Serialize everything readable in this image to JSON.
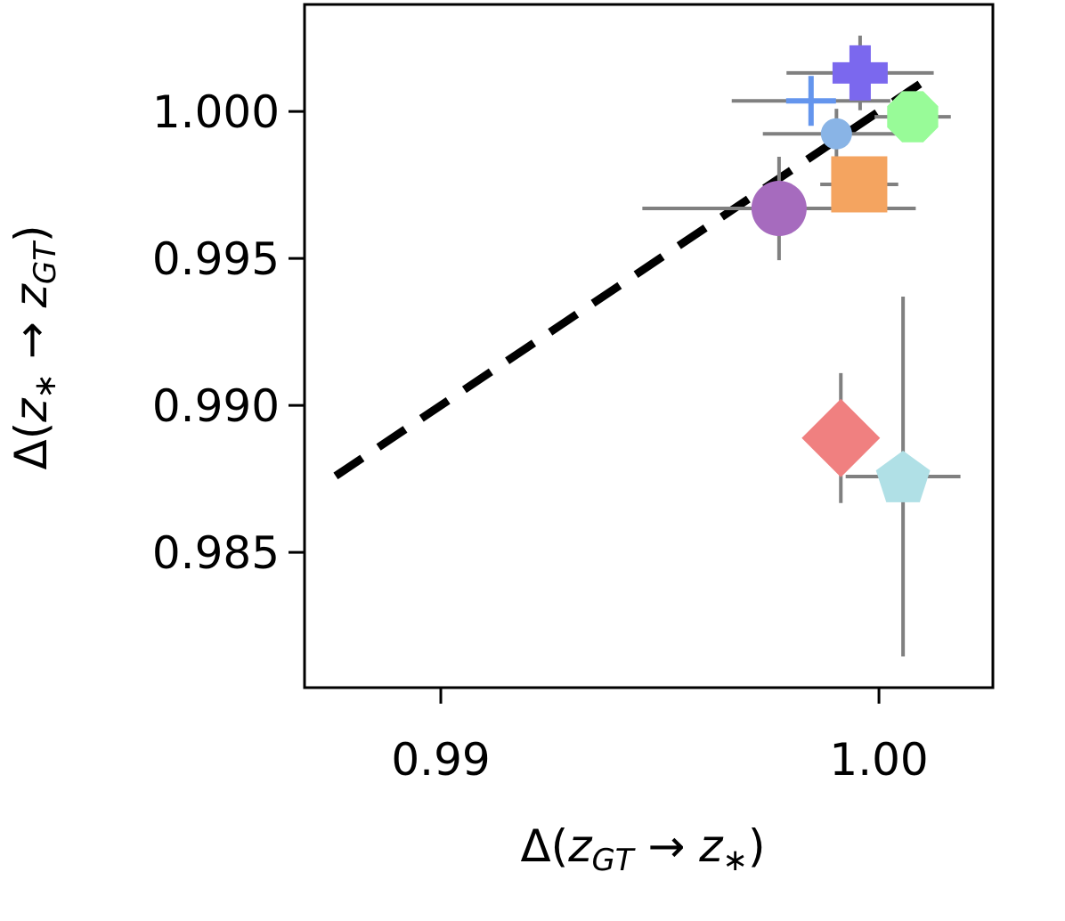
{
  "chart_data": {
    "type": "scatter",
    "title": "",
    "xlabel": {
      "prefix": "Δ(",
      "var1": "z",
      "sub1": "GT",
      "arrow": " → ",
      "var2": "z",
      "sub2": "∗",
      "suffix": ")"
    },
    "ylabel": {
      "prefix": "Δ(",
      "var1": "z",
      "sub1": "∗",
      "arrow": " → ",
      "var2": "z",
      "sub2": "GT",
      "suffix": ")"
    },
    "xlim": [
      0.98689,
      1.0026
    ],
    "ylim": [
      0.9804,
      1.00364
    ],
    "xticks": [
      {
        "value": 0.99,
        "label": "0.99"
      },
      {
        "value": 1.0,
        "label": "1.00"
      }
    ],
    "yticks": [
      {
        "value": 0.985,
        "label": "0.985"
      },
      {
        "value": 0.99,
        "label": "0.990"
      },
      {
        "value": 0.995,
        "label": "0.995"
      },
      {
        "value": 1.0,
        "label": "1.000"
      }
    ],
    "grid": false,
    "reference_line": {
      "style": "dashed",
      "color": "#000000",
      "x": [
        0.9876,
        1.0012
      ],
      "y": [
        0.9876,
        1.0012
      ]
    },
    "errorbar_color": "#808080",
    "points": [
      {
        "marker": "plus-filled",
        "color": "#7B68EE",
        "x": 0.99957,
        "y": 1.00131,
        "xerr": 0.00168,
        "yerr": 0.00127
      },
      {
        "marker": "plus",
        "color": "#6495ED",
        "x": 0.99845,
        "y": 1.00036,
        "xerr": 0.00181,
        "yerr": 0.0002
      },
      {
        "marker": "octagon",
        "color": "#98FB98",
        "x": 1.00077,
        "y": 0.99982,
        "xerr": 0.00087,
        "yerr": 0.0002
      },
      {
        "marker": "circle-small",
        "color": "#89B4E6",
        "x": 0.99903,
        "y": 0.99924,
        "xerr": 0.00168,
        "yerr": 0.00085
      },
      {
        "marker": "square",
        "color": "#F4A460",
        "x": 0.99955,
        "y": 0.99752,
        "xerr": 0.00089,
        "yerr": 0.0003
      },
      {
        "marker": "circle",
        "color": "#A66BBE",
        "x": 0.99772,
        "y": 0.9967,
        "xerr": 0.00312,
        "yerr": 0.00176
      },
      {
        "marker": "diamond",
        "color": "#F08080",
        "x": 0.99913,
        "y": 0.98889,
        "xerr": 0.0006,
        "yerr": 0.00221
      },
      {
        "marker": "pentagon",
        "color": "#B0E0E6",
        "x": 1.00055,
        "y": 0.98758,
        "xerr": 0.00131,
        "yerr": 0.00612
      }
    ]
  }
}
